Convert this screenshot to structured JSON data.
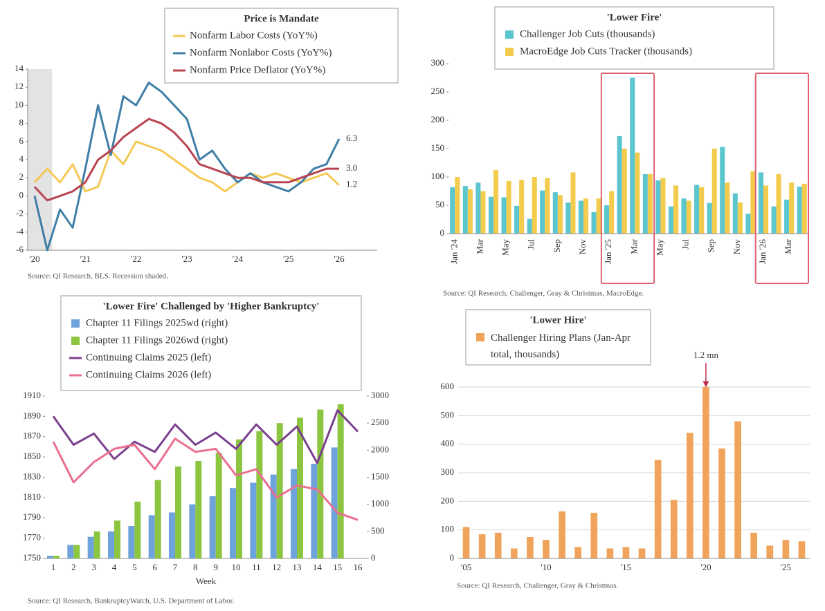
{
  "chart_data": [
    {
      "type": "line",
      "title": "Price is Mandate",
      "categories": [
        "'20",
        null,
        null,
        null,
        "'21",
        null,
        null,
        null,
        "'22",
        null,
        null,
        null,
        "'23",
        null,
        null,
        null,
        "'24",
        null,
        null,
        null,
        "'25",
        null,
        null,
        null,
        "'26"
      ],
      "series": [
        {
          "name": "Nonfarm Labor Costs (YoY%)",
          "color": "#f5c955",
          "values": [
            1.5,
            3,
            1.5,
            3.5,
            0.5,
            1,
            5,
            3.5,
            6,
            5.5,
            5,
            4,
            3,
            2,
            1.5,
            0.5,
            1.5,
            2.5,
            2,
            2.5,
            2,
            1.5,
            2,
            2.5,
            1.2
          ],
          "end_label": "1.2"
        },
        {
          "name": "Nonfarm Nonlabor Costs (YoY%)",
          "color": "#3f7fa6",
          "values": [
            0,
            -6,
            -1.5,
            -3.5,
            3,
            10,
            4.5,
            11,
            10,
            12.5,
            11.5,
            10,
            8.5,
            4,
            5,
            3,
            1.5,
            2.5,
            1.5,
            1,
            0.5,
            1.5,
            3,
            3.5,
            6.3
          ],
          "end_label": "6.3"
        },
        {
          "name": "Nonfarm Price Deflator (YoY%)",
          "color": "#b84552",
          "values": [
            1,
            -0.5,
            0,
            0.5,
            1.5,
            4,
            5,
            6.5,
            7.5,
            8.5,
            8,
            7,
            5.5,
            3.5,
            3,
            2.5,
            2,
            2,
            1.5,
            1.5,
            1.5,
            2,
            2.5,
            3,
            3.0
          ],
          "end_label": "3.0"
        }
      ],
      "ylim": [
        -6,
        14
      ],
      "yticks": [
        -6,
        -4,
        -2,
        0,
        2,
        4,
        6,
        8,
        10,
        12,
        14
      ],
      "recession_shading": [
        0,
        1
      ],
      "source": "Source: QI Research, BLS. Recession shaded."
    },
    {
      "type": "bar",
      "title": "'Lower Fire'",
      "categories": [
        "Jan '24",
        null,
        "Mar",
        null,
        "May",
        null,
        "Jul",
        null,
        "Sep",
        null,
        "Nov",
        null,
        "Jan '25",
        null,
        "Mar",
        null,
        "May",
        null,
        "Jul",
        null,
        "Sep",
        null,
        "Nov",
        null,
        "Jan '26",
        null,
        "Mar",
        null
      ],
      "series": [
        {
          "name": "Challenger Job Cuts (thousands)",
          "color": "#5cc6cf",
          "values": [
            82,
            84,
            90,
            65,
            64,
            49,
            26,
            76,
            73,
            55,
            58,
            38,
            50,
            172,
            275,
            105,
            94,
            48,
            62,
            86,
            54,
            153,
            71,
            35,
            108,
            48,
            60,
            83
          ]
        },
        {
          "name": "MacroEdge Job Cuts Tracker (thousands)",
          "color": "#f3cb4d",
          "values": [
            100,
            78,
            75,
            112,
            93,
            95,
            100,
            98,
            68,
            108,
            62,
            62,
            75,
            150,
            143,
            105,
            98,
            85,
            58,
            82,
            150,
            90,
            55,
            110,
            85,
            105,
            90,
            88
          ]
        }
      ],
      "ylim": [
        0,
        300
      ],
      "yticks": [
        0,
        50,
        100,
        150,
        200,
        250,
        300
      ],
      "highlight_ranges": [
        [
          12,
          15
        ],
        [
          24,
          27
        ]
      ],
      "source": "Source: QI Research, Challenger, Gray & Christmas, MacroEdge."
    },
    {
      "type": "combo",
      "title": "'Lower Fire' Challenged by 'Higher Bankruptcy'",
      "categories": [
        1,
        2,
        3,
        4,
        5,
        6,
        7,
        8,
        9,
        10,
        11,
        12,
        13,
        14,
        15,
        16
      ],
      "x_label": "Week",
      "series": [
        {
          "name": "Chapter 11 Filings 2025wd (right)",
          "kind": "bar",
          "axis": "y2",
          "color": "#6fa3dc",
          "values": [
            50,
            250,
            400,
            500,
            600,
            800,
            850,
            1000,
            1150,
            1300,
            1400,
            1550,
            1650,
            1750,
            2050,
            null
          ]
        },
        {
          "name": "Chapter 11 Filings 2026wd (right)",
          "kind": "bar",
          "axis": "y2",
          "color": "#8cc640",
          "values": [
            50,
            250,
            500,
            700,
            1050,
            1450,
            1700,
            1800,
            1950,
            2200,
            2350,
            2500,
            2600,
            2750,
            2850,
            null
          ]
        },
        {
          "name": "Continuing Claims 2025 (left)",
          "kind": "line",
          "color": "#7a3f8e",
          "values": [
            1890,
            1862,
            1873,
            1848,
            1865,
            1855,
            1882,
            1862,
            1874,
            1858,
            1882,
            1862,
            1880,
            1844,
            1896,
            1875
          ]
        },
        {
          "name": "Continuing Claims 2026 (left)",
          "kind": "line",
          "color": "#ea6f8f",
          "values": [
            1865,
            1825,
            1845,
            1858,
            1862,
            1838,
            1868,
            1855,
            1858,
            1832,
            1838,
            1810,
            1822,
            1818,
            1795,
            1788
          ]
        }
      ],
      "ylim": [
        1750,
        1910
      ],
      "yticks": [
        1750,
        1770,
        1790,
        1810,
        1830,
        1850,
        1870,
        1890,
        1910
      ],
      "y2lim": [
        0,
        3000
      ],
      "y2ticks": [
        0,
        500,
        1000,
        1500,
        2000,
        2500,
        3000
      ],
      "source": "Source: QI Research, BankruptcyWatch, U.S. Department of Labor."
    },
    {
      "type": "bar",
      "title": "'Lower Hire'",
      "categories": [
        "'05",
        null,
        null,
        null,
        null,
        "'10",
        null,
        null,
        null,
        null,
        "'15",
        null,
        null,
        null,
        null,
        "'20",
        null,
        null,
        null,
        null,
        "'25",
        null
      ],
      "series": [
        {
          "name": "Challenger Hiring Plans (Jan-Apr total, thousands)",
          "color": "#f0a35a",
          "values": [
            110,
            85,
            90,
            35,
            75,
            65,
            165,
            40,
            160,
            35,
            40,
            35,
            345,
            205,
            440,
            1200,
            385,
            480,
            90,
            45,
            65,
            60
          ],
          "value_labels": [
            null,
            null,
            null,
            null,
            null,
            null,
            null,
            null,
            null,
            null,
            null,
            null,
            null,
            null,
            null,
            "1.2 mn",
            null,
            null,
            null,
            null,
            null,
            null
          ]
        }
      ],
      "ylim": [
        0,
        600
      ],
      "yticks": [
        0,
        100,
        200,
        300,
        400,
        500,
        600
      ],
      "grid": true,
      "source": "Source: QI Research, Challenger, Gray & Christmas."
    }
  ]
}
